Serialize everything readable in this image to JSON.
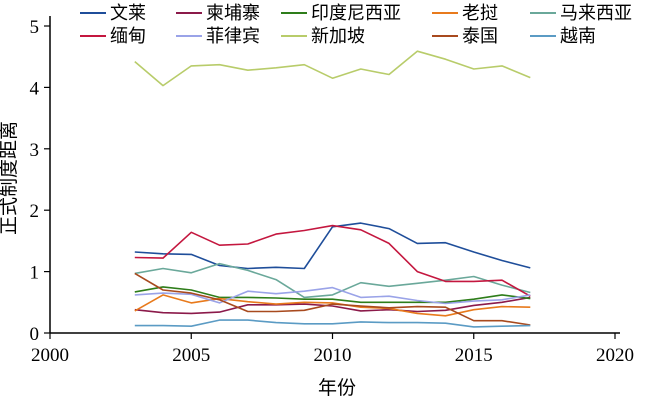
{
  "chart_data": {
    "type": "line",
    "title": "",
    "xlabel": "年份",
    "ylabel": "正式制度距离",
    "xlim": [
      2000,
      2020
    ],
    "ylim": [
      0,
      5
    ],
    "xticks": [
      2000,
      2005,
      2010,
      2015,
      2020
    ],
    "yticks": [
      0,
      1,
      2,
      3,
      4,
      5
    ],
    "grid": false,
    "legend_position": "top",
    "legend_columns": 5,
    "x": [
      2003,
      2004,
      2005,
      2006,
      2007,
      2008,
      2009,
      2010,
      2011,
      2012,
      2013,
      2014,
      2015,
      2016,
      2017
    ],
    "series": [
      {
        "name": "文莱",
        "color": "#1f4e9a",
        "values": [
          1.32,
          1.29,
          1.28,
          1.1,
          1.05,
          1.07,
          1.05,
          1.73,
          1.79,
          1.7,
          1.46,
          1.47,
          1.32,
          1.18,
          1.06
        ]
      },
      {
        "name": "柬埔寨",
        "color": "#8b1a4a",
        "values": [
          0.38,
          0.33,
          0.32,
          0.34,
          0.46,
          0.46,
          0.47,
          0.44,
          0.36,
          0.38,
          0.35,
          0.37,
          0.45,
          0.5,
          0.58
        ]
      },
      {
        "name": "印度尼西亚",
        "color": "#2e7d1a",
        "values": [
          0.67,
          0.75,
          0.7,
          0.58,
          0.58,
          0.57,
          0.55,
          0.55,
          0.5,
          0.5,
          0.5,
          0.5,
          0.55,
          0.62,
          0.56
        ]
      },
      {
        "name": "老挝",
        "color": "#e87a1c",
        "values": [
          0.36,
          0.62,
          0.49,
          0.56,
          0.51,
          0.47,
          0.5,
          0.49,
          0.42,
          0.4,
          0.32,
          0.28,
          0.38,
          0.43,
          0.42
        ]
      },
      {
        "name": "马来西亚",
        "color": "#6aa89a",
        "values": [
          0.97,
          1.05,
          0.98,
          1.13,
          1.02,
          0.87,
          0.58,
          0.62,
          0.82,
          0.76,
          0.81,
          0.86,
          0.92,
          0.78,
          0.66
        ]
      },
      {
        "name": "缅甸",
        "color": "#c4173f",
        "values": [
          1.23,
          1.22,
          1.64,
          1.43,
          1.45,
          1.61,
          1.67,
          1.75,
          1.68,
          1.46,
          1.0,
          0.84,
          0.84,
          0.86,
          0.6
        ]
      },
      {
        "name": "菲律宾",
        "color": "#9aa3e8",
        "values": [
          0.62,
          0.65,
          0.63,
          0.49,
          0.68,
          0.64,
          0.68,
          0.74,
          0.58,
          0.6,
          0.53,
          0.48,
          0.52,
          0.54,
          0.62
        ]
      },
      {
        "name": "新加坡",
        "color": "#b8cc6a",
        "values": [
          4.42,
          4.03,
          4.35,
          4.37,
          4.28,
          4.32,
          4.37,
          4.15,
          4.3,
          4.21,
          4.59,
          4.46,
          4.3,
          4.35,
          4.16
        ]
      },
      {
        "name": "泰国",
        "color": "#a84a1e",
        "values": [
          0.97,
          0.7,
          0.65,
          0.54,
          0.35,
          0.35,
          0.37,
          0.47,
          0.44,
          0.41,
          0.43,
          0.42,
          0.2,
          0.2,
          0.13
        ]
      },
      {
        "name": "越南",
        "color": "#5b9bc4",
        "values": [
          0.12,
          0.12,
          0.11,
          0.21,
          0.21,
          0.17,
          0.15,
          0.15,
          0.18,
          0.17,
          0.17,
          0.16,
          0.1,
          0.11,
          0.12
        ]
      }
    ]
  }
}
